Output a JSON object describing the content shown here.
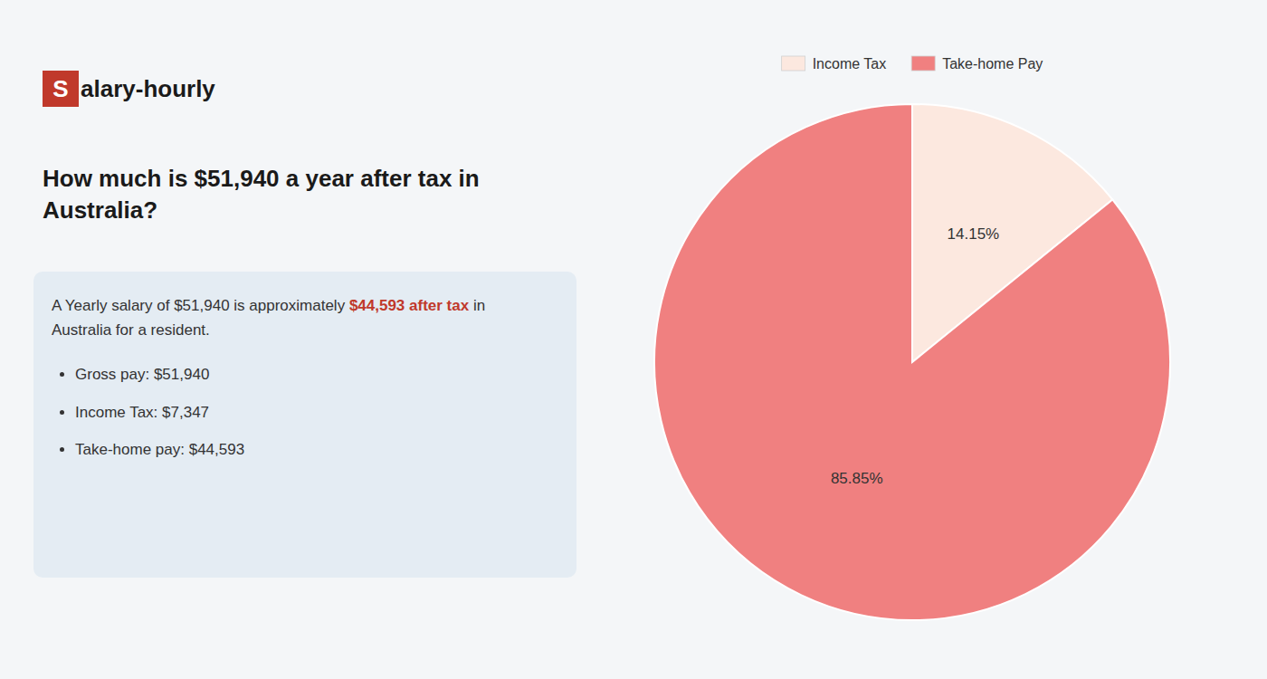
{
  "chart_data": {
    "type": "pie",
    "title": "How much is $51,940 a year after tax in Australia?",
    "categories": [
      "Income Tax",
      "Take-home Pay"
    ],
    "values": [
      14.15,
      85.85
    ],
    "value_labels": [
      "14.15%",
      "85.85%"
    ],
    "colors": [
      "#fce8df",
      "#f08080"
    ],
    "data_labels": true,
    "legend": "top",
    "annotations": [
      {
        "text": "S",
        "color": "#c0392b"
      },
      {
        "text": "alary-hourly"
      },
      {
        "text": "A Yearly salary of $51,940 is approximately "
      },
      {
        "text": "$44,593 after tax",
        "color": "#c0392b"
      },
      {
        "text": " in"
      },
      {
        "text": "Australia for a resident."
      },
      {
        "text": "Gross pay: $51,940"
      },
      {
        "text": "Income Tax: $7,347"
      },
      {
        "text": "Take-home pay: $44,593"
      }
    ]
  }
}
